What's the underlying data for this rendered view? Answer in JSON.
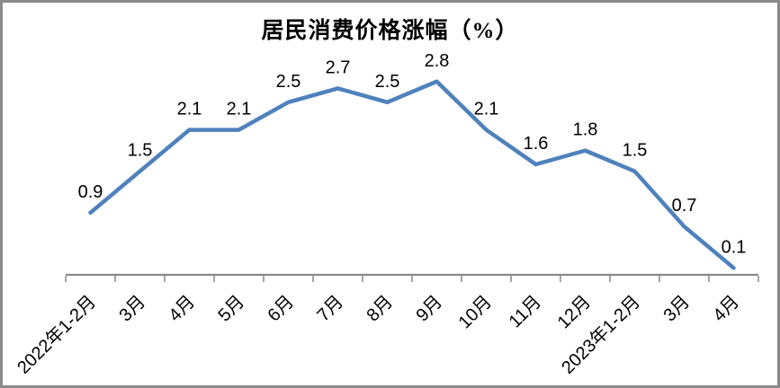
{
  "frame": {
    "background": "#ffffff",
    "border_color": "#8a8a8a"
  },
  "chart_data": {
    "type": "line",
    "title": "居民消费价格涨幅（%）",
    "categories": [
      "2022年1-2月",
      "3月",
      "4月",
      "5月",
      "6月",
      "7月",
      "8月",
      "9月",
      "10月",
      "11月",
      "12月",
      "2023年1-2月",
      "3月",
      "4月"
    ],
    "values": [
      0.9,
      1.5,
      2.1,
      2.1,
      2.5,
      2.7,
      2.5,
      2.8,
      2.1,
      1.6,
      1.8,
      1.5,
      0.7,
      0.1
    ],
    "data_labels": [
      "0.9",
      "1.5",
      "2.1",
      "2.1",
      "2.5",
      "2.7",
      "2.5",
      "2.8",
      "2.1",
      "1.6",
      "1.8",
      "1.5",
      "0.7",
      "0.1"
    ],
    "xlabel": "",
    "ylabel": "",
    "ylim": [
      0,
      3.2
    ],
    "grid": "off",
    "legend": "none",
    "y_axis_visible": false,
    "x_tick_rotation": -45,
    "line_color": "#4F81BD",
    "axis_color": "#898989",
    "label_color": "#000000"
  }
}
